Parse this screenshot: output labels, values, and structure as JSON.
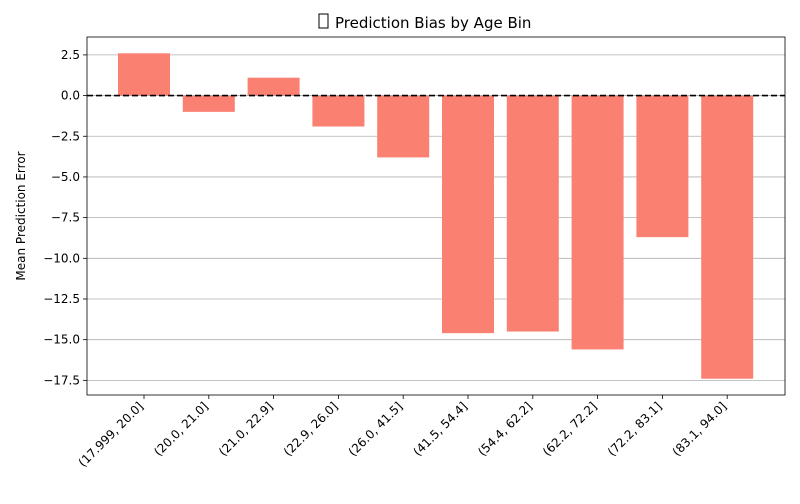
{
  "chart_data": {
    "type": "bar",
    "title_glyph": "box",
    "title": "Prediction Bias by Age Bin",
    "xlabel": "",
    "ylabel": "Mean Prediction Error",
    "categories": [
      "(17.999, 20.0]",
      "(20.0, 21.0]",
      "(21.0, 22.9]",
      "(22.9, 26.0]",
      "(26.0, 41.5]",
      "(41.5, 54.4]",
      "(54.4, 62.2]",
      "(62.2, 72.2]",
      "(72.2, 83.1]",
      "(83.1, 94.0]"
    ],
    "values": [
      2.6,
      -1.0,
      1.1,
      -1.9,
      -3.8,
      -14.6,
      -14.5,
      -15.6,
      -8.7,
      -17.4
    ],
    "ylim": [
      -18.4,
      3.6
    ],
    "yticks": [
      2.5,
      0.0,
      -2.5,
      -5.0,
      -7.5,
      -10.0,
      -12.5,
      -15.0,
      -17.5
    ],
    "ytick_labels": [
      "2.5",
      "0.0",
      "−2.5",
      "−5.0",
      "−7.5",
      "−10.0",
      "−12.5",
      "−15.0",
      "−17.5"
    ],
    "reference_line": 0,
    "grid": "y",
    "bar_color": "#fa8072"
  }
}
